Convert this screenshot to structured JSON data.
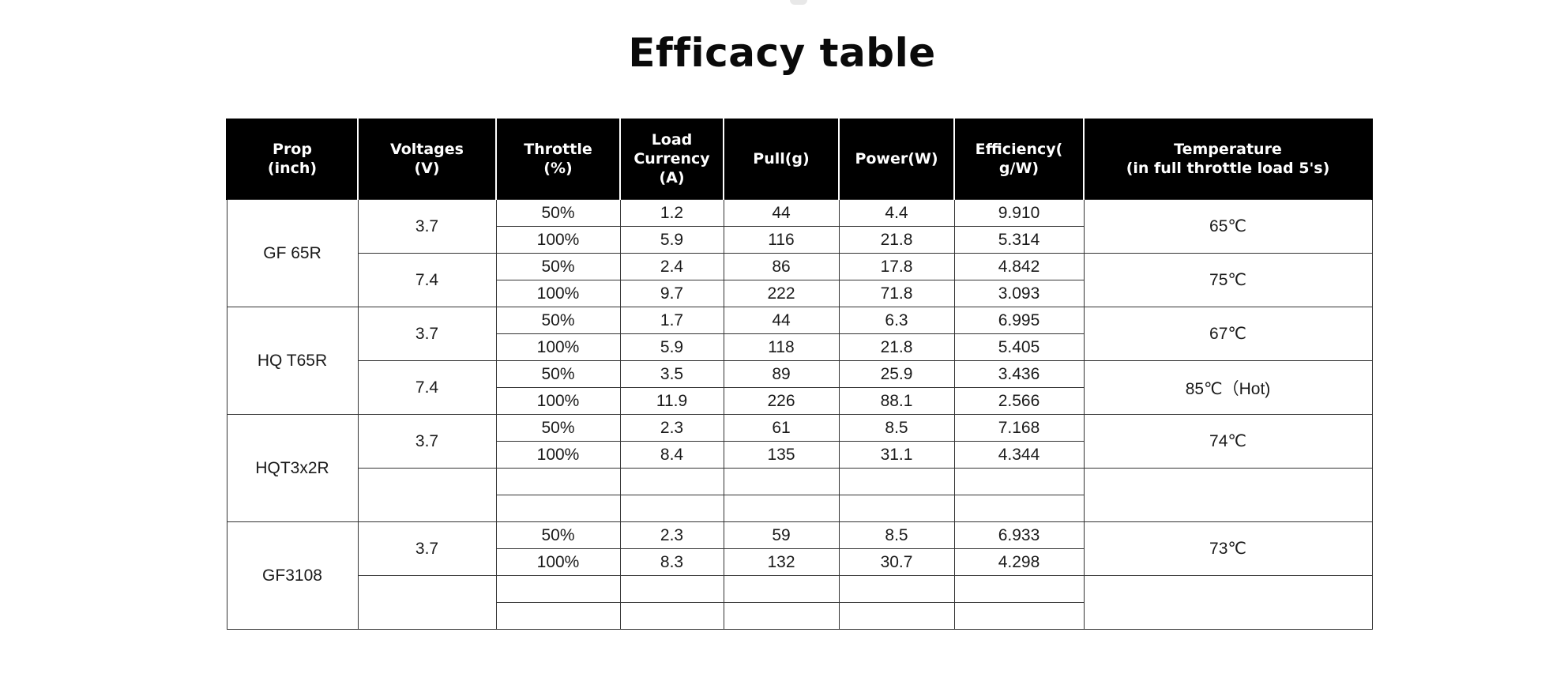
{
  "title": "Efficacy table",
  "table": {
    "headers": [
      "Prop\n(inch)",
      "Voltages\n(V)",
      "Throttle\n(%)",
      "Load\nCurrency\n(A)",
      "Pull(g)",
      "Power(W)",
      "Efficiency(\ng/W)",
      "Temperature\n(in full throttle load 5's)"
    ],
    "groups": [
      {
        "prop": "GF 65R",
        "voltages": [
          {
            "voltage": "3.7",
            "temperature": "65℃",
            "rows": [
              {
                "throttle": "50%",
                "current": "1.2",
                "pull": "44",
                "power": "4.4",
                "efficiency": "9.910"
              },
              {
                "throttle": "100%",
                "current": "5.9",
                "pull": "116",
                "power": "21.8",
                "efficiency": "5.314"
              }
            ]
          },
          {
            "voltage": "7.4",
            "temperature": "75℃",
            "rows": [
              {
                "throttle": "50%",
                "current": "2.4",
                "pull": "86",
                "power": "17.8",
                "efficiency": "4.842"
              },
              {
                "throttle": "100%",
                "current": "9.7",
                "pull": "222",
                "power": "71.8",
                "efficiency": "3.093"
              }
            ]
          }
        ]
      },
      {
        "prop": "HQ T65R",
        "voltages": [
          {
            "voltage": "3.7",
            "temperature": "67℃",
            "rows": [
              {
                "throttle": "50%",
                "current": "1.7",
                "pull": "44",
                "power": "6.3",
                "efficiency": "6.995"
              },
              {
                "throttle": "100%",
                "current": "5.9",
                "pull": "118",
                "power": "21.8",
                "efficiency": "5.405"
              }
            ]
          },
          {
            "voltage": "7.4",
            "temperature": "85℃（Hot)",
            "rows": [
              {
                "throttle": "50%",
                "current": "3.5",
                "pull": "89",
                "power": "25.9",
                "efficiency": "3.436"
              },
              {
                "throttle": "100%",
                "current": "11.9",
                "pull": "226",
                "power": "88.1",
                "efficiency": "2.566"
              }
            ]
          }
        ]
      },
      {
        "prop": "HQT3x2R",
        "voltages": [
          {
            "voltage": "3.7",
            "temperature": "74℃",
            "rows": [
              {
                "throttle": "50%",
                "current": "2.3",
                "pull": "61",
                "power": "8.5",
                "efficiency": "7.168"
              },
              {
                "throttle": "100%",
                "current": "8.4",
                "pull": "135",
                "power": "31.1",
                "efficiency": "4.344"
              }
            ]
          },
          {
            "voltage": "",
            "temperature": "",
            "rows": [
              {
                "throttle": "",
                "current": "",
                "pull": "",
                "power": "",
                "efficiency": ""
              },
              {
                "throttle": "",
                "current": "",
                "pull": "",
                "power": "",
                "efficiency": ""
              }
            ]
          }
        ]
      },
      {
        "prop": "GF3108",
        "voltages": [
          {
            "voltage": "3.7",
            "temperature": "73℃",
            "rows": [
              {
                "throttle": "50%",
                "current": "2.3",
                "pull": "59",
                "power": "8.5",
                "efficiency": "6.933"
              },
              {
                "throttle": "100%",
                "current": "8.3",
                "pull": "132",
                "power": "30.7",
                "efficiency": "4.298"
              }
            ]
          },
          {
            "voltage": "",
            "temperature": "",
            "rows": [
              {
                "throttle": "",
                "current": "",
                "pull": "",
                "power": "",
                "efficiency": ""
              },
              {
                "throttle": "",
                "current": "",
                "pull": "",
                "power": "",
                "efficiency": ""
              }
            ]
          }
        ]
      }
    ]
  }
}
